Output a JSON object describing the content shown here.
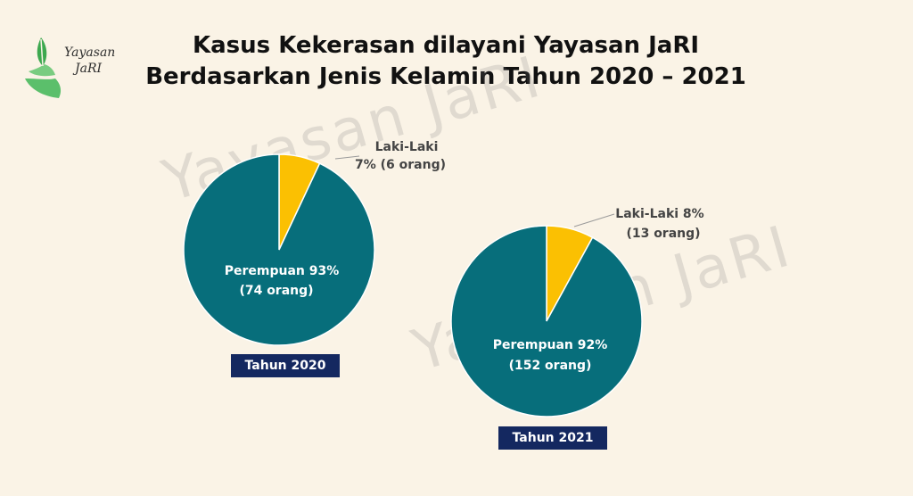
{
  "logo": {
    "line1": "Yayasan",
    "line2": "JaRI",
    "icon": "hand-leaf-icon",
    "color": "#5bbf6b"
  },
  "title": {
    "line1": "Kasus Kekerasan dilayani Yayasan JaRI",
    "line2": "Berdasarkan Jenis Kelamin Tahun 2020 – 2021"
  },
  "watermark": "Yayasan JaRI",
  "colors": {
    "female": "#076e7b",
    "male": "#fbc002",
    "badge": "#142860",
    "background": "#faf3e6"
  },
  "chart_data": [
    {
      "type": "pie",
      "year_label": "Tahun 2020",
      "slices": [
        {
          "category": "Laki-Laki",
          "percent": 7,
          "count": 6,
          "label_lines": [
            "Laki-Laki",
            "7% (6 orang)"
          ],
          "color": "#fbc002"
        },
        {
          "category": "Perempuan",
          "percent": 93,
          "count": 74,
          "label_lines": [
            "Perempuan 93%",
            "(74 orang)"
          ],
          "color": "#076e7b"
        }
      ]
    },
    {
      "type": "pie",
      "year_label": "Tahun 2021",
      "slices": [
        {
          "category": "Laki-Laki",
          "percent": 8,
          "count": 13,
          "label_lines": [
            "Laki-Laki 8%",
            "(13 orang)"
          ],
          "color": "#fbc002"
        },
        {
          "category": "Perempuan",
          "percent": 92,
          "count": 152,
          "label_lines": [
            "Perempuan 92%",
            "(152 orang)"
          ],
          "color": "#076e7b"
        }
      ]
    }
  ]
}
